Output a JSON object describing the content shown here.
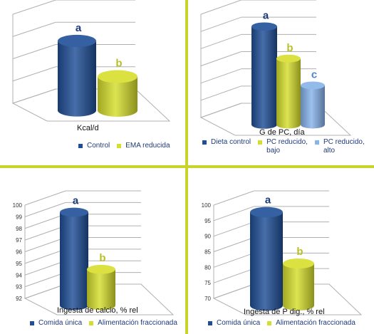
{
  "colors": {
    "divider": "#c8d42a",
    "blue": "#1f4e96",
    "yellow": "#d6de2c",
    "light_blue": "#86b3ea",
    "letter_blue": "#1f3a7a",
    "letter_yellow": "#b8c026",
    "letter_lightblue": "#4a86c8",
    "grid": "#b0b0b0"
  },
  "chart_data": [
    {
      "type": "bar",
      "xlabel": "Kcal/d",
      "ylabel": "",
      "ylim": [
        0,
        100
      ],
      "yticks": [],
      "grid": true,
      "legend_position": "bottom",
      "series": [
        {
          "name": "Control",
          "value": 78,
          "letter": "a",
          "color": "blue"
        },
        {
          "name": "EMA reducida",
          "value": 38,
          "letter": "b",
          "color": "yellow"
        }
      ]
    },
    {
      "type": "bar",
      "xlabel": "G de PC, día",
      "ylabel": "",
      "ylim": [
        0,
        100
      ],
      "yticks": [],
      "grid": true,
      "legend_position": "bottom",
      "series": [
        {
          "name": "Dieta control",
          "value": 95,
          "letter": "a",
          "color": "blue"
        },
        {
          "name": "PC reducido,\nbajo",
          "value": 64,
          "letter": "b",
          "color": "yellow"
        },
        {
          "name": "PC reducido,\nalto",
          "value": 38,
          "letter": "c",
          "color": "light_blue"
        }
      ]
    },
    {
      "type": "bar",
      "xlabel": "Ingesta de calcio, % rel",
      "ylabel": "",
      "ylim": [
        92,
        100
      ],
      "yticks": [
        "92",
        "93",
        "94",
        "95",
        "96",
        "97",
        "98",
        "99",
        "100"
      ],
      "grid": true,
      "legend_position": "bottom",
      "series": [
        {
          "name": "Comida única",
          "value": 100,
          "letter": "a",
          "color": "blue"
        },
        {
          "name": "Alimentación fraccionada",
          "value": 95.1,
          "letter": "b",
          "color": "yellow"
        }
      ]
    },
    {
      "type": "bar",
      "xlabel": "Ingesta de P dig., % rel",
      "ylabel": "",
      "ylim": [
        70,
        100
      ],
      "yticks": [
        "70",
        "75",
        "80",
        "85",
        "90",
        "95",
        "100"
      ],
      "grid": true,
      "legend_position": "bottom",
      "series": [
        {
          "name": "Comida única",
          "value": 100,
          "letter": "a",
          "color": "blue"
        },
        {
          "name": "Alimentación fraccionada",
          "value": 83.5,
          "letter": "b",
          "color": "yellow"
        }
      ]
    }
  ]
}
